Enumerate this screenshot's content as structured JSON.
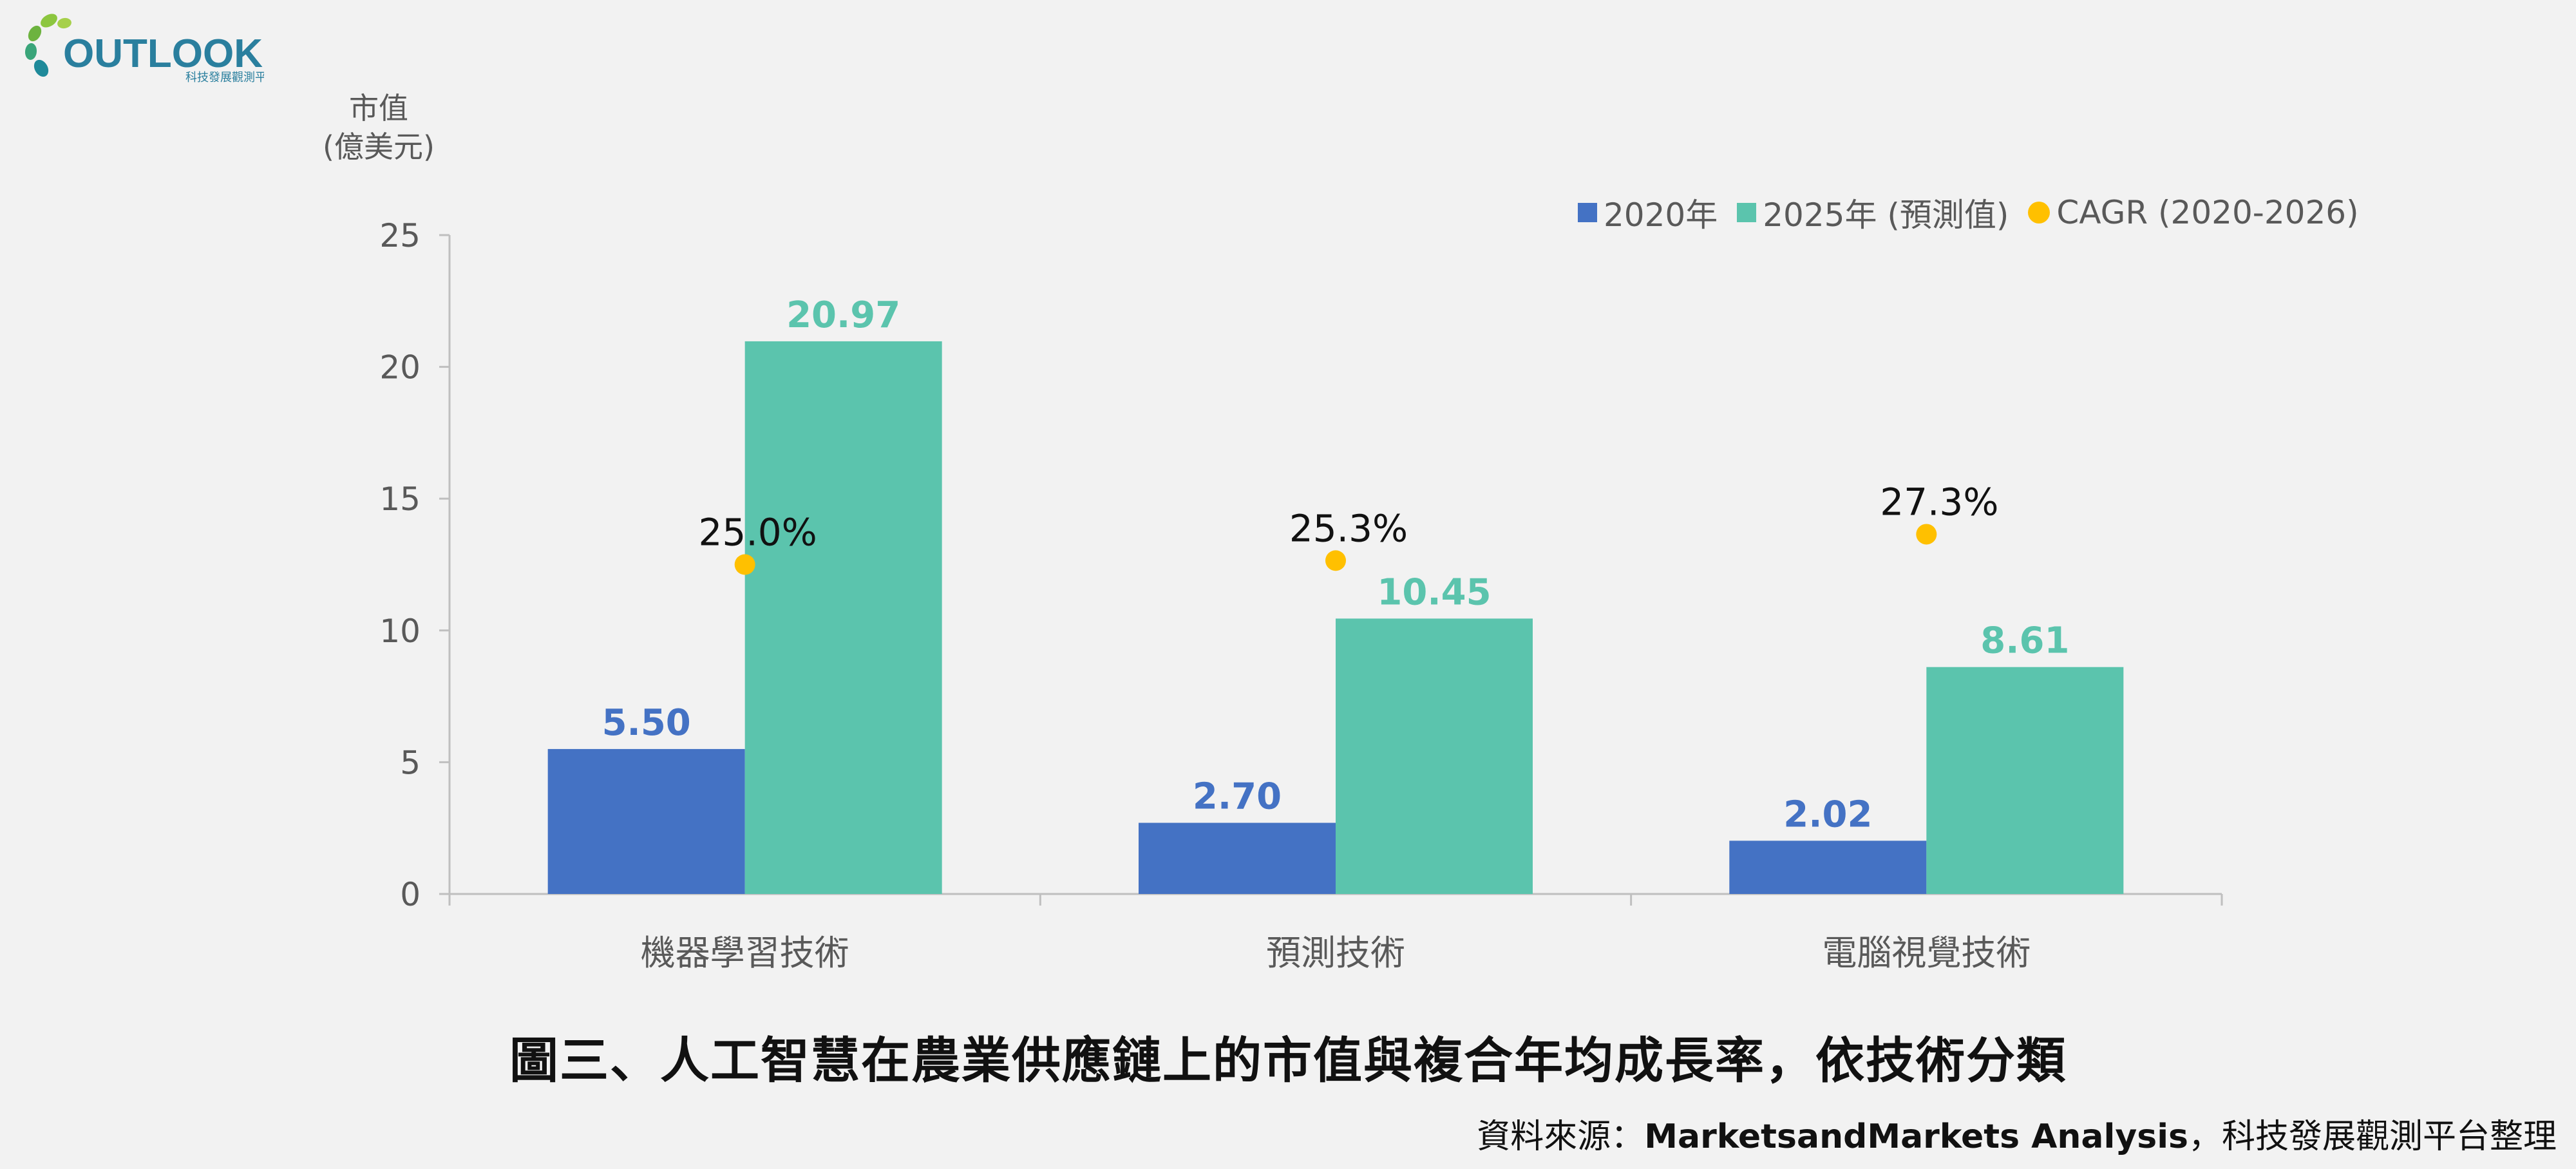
{
  "logo": {
    "text": "OUTLOOK",
    "subtext": "科技發展觀測平台"
  },
  "colors": {
    "series2020": "#4472c4",
    "series2025": "#5bc4ad",
    "cagr": "#ffc000",
    "axis": "#bfbfbf",
    "text": "#595959"
  },
  "y_unit": {
    "line1": "市值",
    "line2": "(億美元)"
  },
  "legend": {
    "item1": "2020年",
    "item2": "2025年 (預測值)",
    "item3": "CAGR (2020-2026)"
  },
  "chart_data": {
    "type": "bar",
    "categories": [
      "機器學習技術",
      "預測技術",
      "電腦視覺技術"
    ],
    "series": [
      {
        "name": "2020年",
        "values": [
          5.5,
          2.7,
          2.02
        ],
        "labels": [
          "5.50",
          "2.70",
          "2.02"
        ]
      },
      {
        "name": "2025年 (預測值)",
        "values": [
          20.97,
          10.45,
          8.61
        ],
        "labels": [
          "20.97",
          "10.45",
          "8.61"
        ]
      }
    ],
    "cagr": {
      "name": "CAGR (2020-2026)",
      "values": [
        25.0,
        25.3,
        27.3
      ],
      "labels": [
        "25.0%",
        "25.3%",
        "27.3%"
      ]
    },
    "ylim": [
      0,
      25
    ],
    "yticks": [
      "0",
      "5",
      "10",
      "15",
      "20",
      "25"
    ],
    "ylabel": "市值 (億美元)",
    "legend_position": "top-right",
    "grid": false
  },
  "caption": "圖三、人工智慧在農業供應鏈上的市值與複合年均成長率，依技術分類",
  "source": {
    "prefix": "資料來源：",
    "bold": "MarketsandMarkets Analysis",
    "suffix": "，科技發展觀測平台整理"
  }
}
